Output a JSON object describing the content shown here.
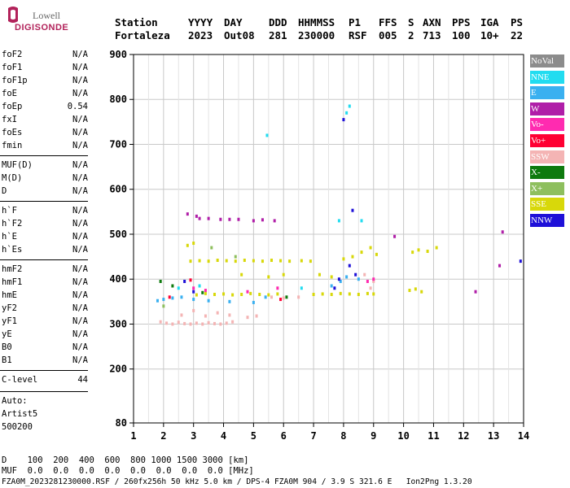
{
  "logo": {
    "top": "Lowell",
    "bottom": "DIGISONDE"
  },
  "header": {
    "labels": [
      "Station",
      "YYYY",
      "DAY",
      "DDD",
      "HHMMSS",
      "P1",
      "FFS",
      "S",
      "AXN",
      "PPS",
      "IGA",
      "PS"
    ],
    "values": [
      "Fortaleza",
      "2023",
      "Out08",
      "281",
      "230000",
      "RSF",
      "005",
      "2",
      "713",
      "100",
      "10+",
      "22"
    ]
  },
  "params_group1": [
    {
      "name": "foF2",
      "value": "N/A"
    },
    {
      "name": "foF1",
      "value": "N/A"
    },
    {
      "name": "foF1p",
      "value": "N/A"
    },
    {
      "name": "foE",
      "value": "N/A"
    },
    {
      "name": "foEp",
      "value": "0.54"
    },
    {
      "name": "fxI",
      "value": "N/A"
    },
    {
      "name": "foEs",
      "value": "N/A"
    },
    {
      "name": "fmin",
      "value": "N/A"
    }
  ],
  "params_group2": [
    {
      "name": "MUF(D)",
      "value": "N/A"
    },
    {
      "name": "M(D)",
      "value": "N/A"
    },
    {
      "name": "D",
      "value": "N/A"
    }
  ],
  "params_group3": [
    {
      "name": "h`F",
      "value": "N/A"
    },
    {
      "name": "h`F2",
      "value": "N/A"
    },
    {
      "name": "h`E",
      "value": "N/A"
    },
    {
      "name": "h`Es",
      "value": "N/A"
    }
  ],
  "params_group4": [
    {
      "name": "hmF2",
      "value": "N/A"
    },
    {
      "name": "hmF1",
      "value": "N/A"
    },
    {
      "name": "hmE",
      "value": "N/A"
    },
    {
      "name": "yF2",
      "value": "N/A"
    },
    {
      "name": "yF1",
      "value": "N/A"
    },
    {
      "name": "yE",
      "value": "N/A"
    },
    {
      "name": "B0",
      "value": "N/A"
    },
    {
      "name": "B1",
      "value": "N/A"
    }
  ],
  "clevel": {
    "name": "C-level",
    "value": "44"
  },
  "auto": {
    "label": "Auto:",
    "artist": "Artist5",
    "version": "500200"
  },
  "legend": [
    {
      "label": "NoVal",
      "color": "#8c8c8c"
    },
    {
      "label": "NNE",
      "color": "#22dcf0"
    },
    {
      "label": "E",
      "color": "#3ab0f0"
    },
    {
      "label": "W",
      "color": "#b01ea8"
    },
    {
      "label": "Vo-",
      "color": "#ff2bb0"
    },
    {
      "label": "Vo+",
      "color": "#ff0033"
    },
    {
      "label": "SSW",
      "color": "#f4b4b4"
    },
    {
      "label": "X-",
      "color": "#0e7a0e"
    },
    {
      "label": "X+",
      "color": "#8ebf5e"
    },
    {
      "label": "SSE",
      "color": "#d8d80a"
    },
    {
      "label": "NNW",
      "color": "#1e10d8"
    }
  ],
  "footer": {
    "d_line": "D    100  200  400  600  800 1000 1500 3000 [km]",
    "muf_line": "MUF  0.0  0.0  0.0  0.0  0.0  0.0  0.0  0.0 [MHz]",
    "file_line": "FZA0M_2023281230000.RSF / 260fx256h 50 kHz 5.0 km / DPS-4 FZA0M 904 / 3.9 S 321.6 E   Ion2Png 1.3.20"
  },
  "chart_data": {
    "type": "scatter",
    "title": "",
    "xlabel": "",
    "ylabel": "",
    "xlim": [
      1,
      14
    ],
    "ylim": [
      80,
      900
    ],
    "x_ticks": [
      1,
      2,
      3,
      4,
      5,
      6,
      7,
      8,
      9,
      10,
      11,
      12,
      13,
      14
    ],
    "y_ticks": [
      80,
      200,
      300,
      400,
      500,
      600,
      700,
      800,
      900
    ],
    "grid": true,
    "legend_position": "right",
    "series": [
      {
        "name": "SSE",
        "color": "#d8d80a",
        "points": [
          [
            2.9,
            440
          ],
          [
            3.2,
            441
          ],
          [
            3.5,
            440
          ],
          [
            3.8,
            442
          ],
          [
            4.1,
            441
          ],
          [
            4.4,
            440
          ],
          [
            4.7,
            442
          ],
          [
            5.0,
            441
          ],
          [
            5.3,
            440
          ],
          [
            5.6,
            442
          ],
          [
            5.9,
            441
          ],
          [
            6.2,
            440
          ],
          [
            6.6,
            441
          ],
          [
            6.9,
            440
          ],
          [
            3.1,
            365
          ],
          [
            3.4,
            368
          ],
          [
            3.7,
            366
          ],
          [
            4.0,
            367
          ],
          [
            4.3,
            365
          ],
          [
            4.6,
            366
          ],
          [
            4.9,
            368
          ],
          [
            5.2,
            366
          ],
          [
            5.5,
            365
          ],
          [
            5.8,
            367
          ],
          [
            7.0,
            366
          ],
          [
            7.3,
            367
          ],
          [
            7.6,
            366
          ],
          [
            7.9,
            368
          ],
          [
            8.2,
            367
          ],
          [
            8.5,
            366
          ],
          [
            8.8,
            368
          ],
          [
            9.0,
            367
          ],
          [
            8.0,
            445
          ],
          [
            8.3,
            450
          ],
          [
            8.6,
            460
          ],
          [
            8.9,
            470
          ],
          [
            9.1,
            455
          ],
          [
            10.2,
            375
          ],
          [
            10.4,
            378
          ],
          [
            10.6,
            372
          ],
          [
            10.3,
            460
          ],
          [
            10.5,
            465
          ],
          [
            10.8,
            462
          ],
          [
            11.1,
            470
          ],
          [
            2.8,
            475
          ],
          [
            3.0,
            480
          ],
          [
            4.6,
            410
          ],
          [
            5.5,
            405
          ],
          [
            6.0,
            410
          ],
          [
            7.2,
            410
          ],
          [
            7.6,
            405
          ]
        ]
      },
      {
        "name": "SSW",
        "color": "#f4b4b4",
        "points": [
          [
            1.9,
            305
          ],
          [
            2.1,
            302
          ],
          [
            2.3,
            300
          ],
          [
            2.5,
            304
          ],
          [
            2.7,
            301
          ],
          [
            2.9,
            300
          ],
          [
            3.1,
            302
          ],
          [
            3.3,
            300
          ],
          [
            3.5,
            303
          ],
          [
            3.7,
            301
          ],
          [
            3.9,
            300
          ],
          [
            4.1,
            302
          ],
          [
            4.3,
            305
          ],
          [
            2.6,
            320
          ],
          [
            3.0,
            330
          ],
          [
            3.4,
            318
          ],
          [
            3.8,
            325
          ],
          [
            4.2,
            320
          ],
          [
            4.8,
            315
          ],
          [
            5.1,
            318
          ],
          [
            5.6,
            360
          ],
          [
            6.0,
            358
          ],
          [
            6.5,
            360
          ],
          [
            8.9,
            380
          ],
          [
            9.0,
            395
          ],
          [
            8.7,
            410
          ]
        ]
      },
      {
        "name": "E",
        "color": "#3ab0f0",
        "points": [
          [
            1.8,
            352
          ],
          [
            2.0,
            355
          ],
          [
            2.3,
            358
          ],
          [
            2.6,
            360
          ],
          [
            3.0,
            355
          ],
          [
            3.5,
            352
          ],
          [
            4.2,
            350
          ],
          [
            5.0,
            348
          ],
          [
            5.4,
            360
          ],
          [
            7.6,
            385
          ],
          [
            7.9,
            395
          ],
          [
            8.1,
            405
          ],
          [
            8.5,
            400
          ]
        ]
      },
      {
        "name": "NNE",
        "color": "#22dcf0",
        "points": [
          [
            5.45,
            720
          ],
          [
            8.1,
            770
          ],
          [
            8.2,
            785
          ],
          [
            7.85,
            530
          ],
          [
            8.6,
            530
          ],
          [
            2.5,
            380
          ],
          [
            3.2,
            385
          ],
          [
            6.6,
            380
          ]
        ]
      },
      {
        "name": "W",
        "color": "#b01ea8",
        "points": [
          [
            2.8,
            545
          ],
          [
            3.1,
            540
          ],
          [
            3.2,
            535
          ],
          [
            3.5,
            535
          ],
          [
            3.9,
            533
          ],
          [
            4.2,
            533
          ],
          [
            4.5,
            533
          ],
          [
            5.0,
            530
          ],
          [
            5.3,
            532
          ],
          [
            5.7,
            530
          ],
          [
            9.7,
            495
          ],
          [
            12.4,
            372
          ],
          [
            13.2,
            430
          ],
          [
            13.3,
            505
          ]
        ]
      },
      {
        "name": "Vo-",
        "color": "#ff2bb0",
        "points": [
          [
            3.0,
            380
          ],
          [
            3.4,
            375
          ],
          [
            4.8,
            372
          ],
          [
            5.8,
            380
          ],
          [
            8.8,
            395
          ],
          [
            9.0,
            400
          ]
        ]
      },
      {
        "name": "Vo+",
        "color": "#ff0033",
        "points": [
          [
            2.2,
            360
          ],
          [
            2.9,
            398
          ],
          [
            5.9,
            355
          ]
        ]
      },
      {
        "name": "X-",
        "color": "#0e7a0e",
        "points": [
          [
            1.9,
            395
          ],
          [
            2.3,
            385
          ],
          [
            3.3,
            370
          ],
          [
            6.1,
            360
          ]
        ]
      },
      {
        "name": "X+",
        "color": "#8ebf5e",
        "points": [
          [
            2.0,
            340
          ],
          [
            3.6,
            470
          ],
          [
            4.4,
            450
          ]
        ]
      },
      {
        "name": "NNW",
        "color": "#1e10d8",
        "points": [
          [
            8.0,
            755
          ],
          [
            8.3,
            553
          ],
          [
            8.2,
            430
          ],
          [
            8.4,
            410
          ],
          [
            2.7,
            395
          ],
          [
            3.0,
            372
          ],
          [
            13.9,
            440
          ],
          [
            7.7,
            380
          ],
          [
            7.85,
            400
          ]
        ]
      }
    ]
  }
}
